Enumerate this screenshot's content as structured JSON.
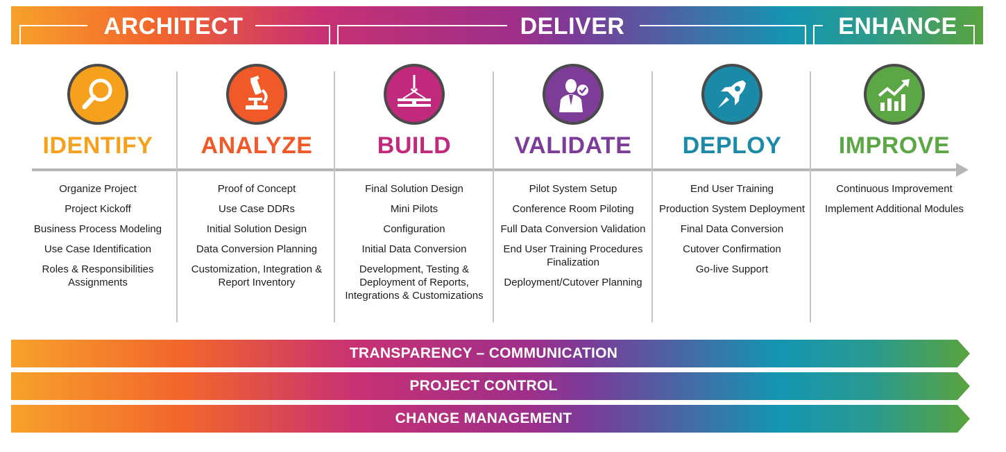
{
  "phases": [
    {
      "title": "ARCHITECT"
    },
    {
      "title": "DELIVER"
    },
    {
      "title": "ENHANCE"
    }
  ],
  "stages": [
    {
      "title": "IDENTIFY",
      "color": "#f6a11d",
      "icon": "magnifying-glass-icon",
      "items": [
        "Organize Project",
        "Project Kickoff",
        "Business Process Modeling",
        "Use Case Identification",
        "Roles & Responsibilities Assignments"
      ]
    },
    {
      "title": "ANALYZE",
      "color": "#f05a28",
      "icon": "microscope-icon",
      "items": [
        "Proof of Concept",
        "Use Case DDRs",
        "Initial Solution Design",
        "Data Conversion Planning",
        "Customization, Integration & Report Inventory"
      ]
    },
    {
      "title": "BUILD",
      "color": "#c1297c",
      "icon": "crane-beam-icon",
      "items": [
        "Final Solution Design",
        "Mini Pilots",
        "Configuration",
        "Initial Data Conversion",
        "Development, Testing & Deployment of Reports, Integrations & Customizations"
      ]
    },
    {
      "title": "VALIDATE",
      "color": "#7d3c98",
      "icon": "businessman-check-icon",
      "items": [
        "Pilot System Setup",
        "Conference Room Piloting",
        "Full Data Conversion Validation",
        "End User Training Procedures Finalization",
        "Deployment/Cutover Planning"
      ]
    },
    {
      "title": "DEPLOY",
      "color": "#1a8aa8",
      "icon": "rocket-icon",
      "items": [
        "End User Training",
        "Production System Deployment",
        "Final Data Conversion",
        "Cutover Confirmation",
        "Go-live Support"
      ]
    },
    {
      "title": "IMPROVE",
      "color": "#5ba645",
      "icon": "growth-chart-icon",
      "items": [
        "Continuous Improvement",
        "Implement Additional Modules"
      ]
    }
  ],
  "bars": [
    {
      "label": "TRANSPARENCY – COMMUNICATION"
    },
    {
      "label": "PROJECT CONTROL"
    },
    {
      "label": "CHANGE MANAGEMENT"
    }
  ]
}
